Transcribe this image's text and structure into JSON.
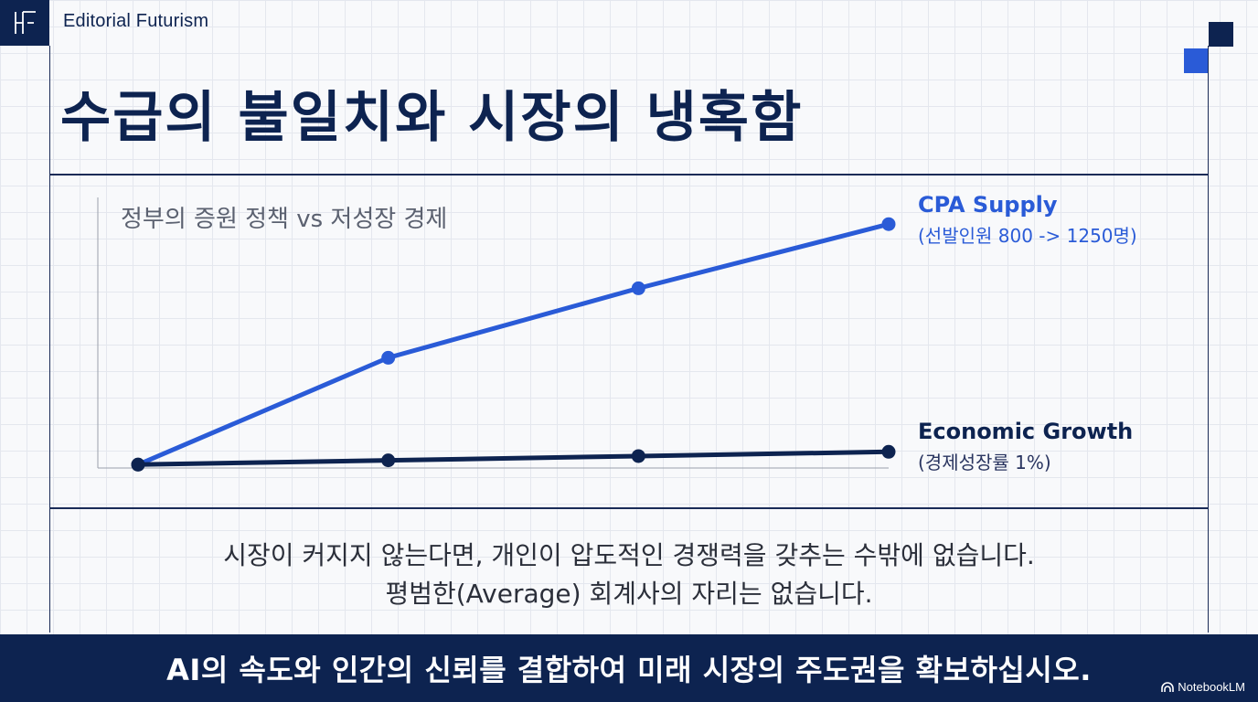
{
  "header": {
    "brand": "Editorial Futurism",
    "logo_icon": "monogram-logo-icon"
  },
  "title": "수급의 불일치와 시장의 냉혹함",
  "chart_data": {
    "type": "line",
    "title": "정부의 증원 정책 vs 저성장 경제",
    "x": [
      0,
      1,
      2,
      3
    ],
    "series": [
      {
        "name": "CPA Supply",
        "note": "(선발인원 800 -> 1250명)",
        "color": "#2a5bd7",
        "values": [
          800,
          1000,
          1130,
          1250
        ]
      },
      {
        "name": "Economic Growth",
        "note": "(경제성장률 1%)",
        "color": "#0d2350",
        "values": [
          800,
          808,
          816,
          824
        ]
      }
    ],
    "xlabel": "",
    "ylabel": "",
    "ylim": [
      780,
      1300
    ],
    "grid": false,
    "legend": "right"
  },
  "caption": {
    "line1": "시장이 커지지 않는다면, 개인이 압도적인 경쟁력을 갖추는 수밖에 없습니다.",
    "line2": "평범한(Average) 회계사의 자리는 없습니다."
  },
  "banner": "AI의 속도와 인간의 신뢰를 결합하여 미래 시장의 주도권을 확보하십시오.",
  "watermark": {
    "label": "NotebookLM",
    "icon": "notebooklm-icon"
  },
  "colors": {
    "navy": "#0d2350",
    "accent": "#2a5bd7"
  }
}
